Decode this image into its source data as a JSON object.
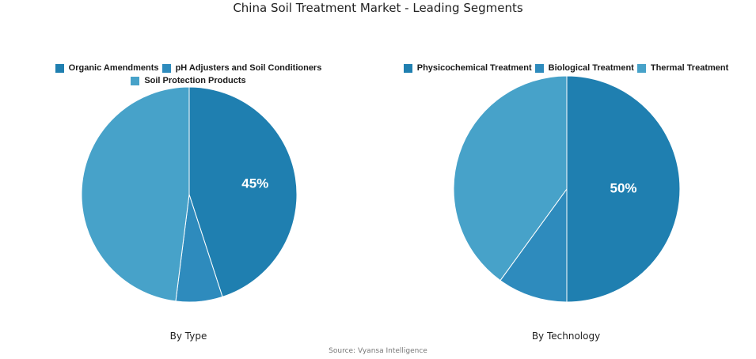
{
  "title": "China Soil Treatment Market - Leading Segments",
  "source": "Source: Vyansa Intelligence",
  "chart_data": [
    {
      "type": "pie",
      "caption": "By Type",
      "start_angle_deg": 0,
      "direction": "clockwise",
      "slices": [
        {
          "label": "Organic Amendments",
          "value": 45,
          "color": "#1f7fb0",
          "data_label": "45%"
        },
        {
          "label": "pH Adjusters and Soil Conditioners",
          "value": 7,
          "color": "#2e8bbd",
          "data_label": ""
        },
        {
          "label": "Soil Protection Products",
          "value": 48,
          "color": "#47a2c9",
          "data_label": ""
        }
      ]
    },
    {
      "type": "pie",
      "caption": "By Technology",
      "start_angle_deg": 0,
      "direction": "clockwise",
      "slices": [
        {
          "label": "Physicochemical Treatment",
          "value": 50,
          "color": "#1f7fb0",
          "data_label": "50%"
        },
        {
          "label": "Biological Treatment",
          "value": 10,
          "color": "#2e8bbd",
          "data_label": ""
        },
        {
          "label": "Thermal Treatment",
          "value": 40,
          "color": "#47a2c9",
          "data_label": ""
        }
      ]
    }
  ]
}
